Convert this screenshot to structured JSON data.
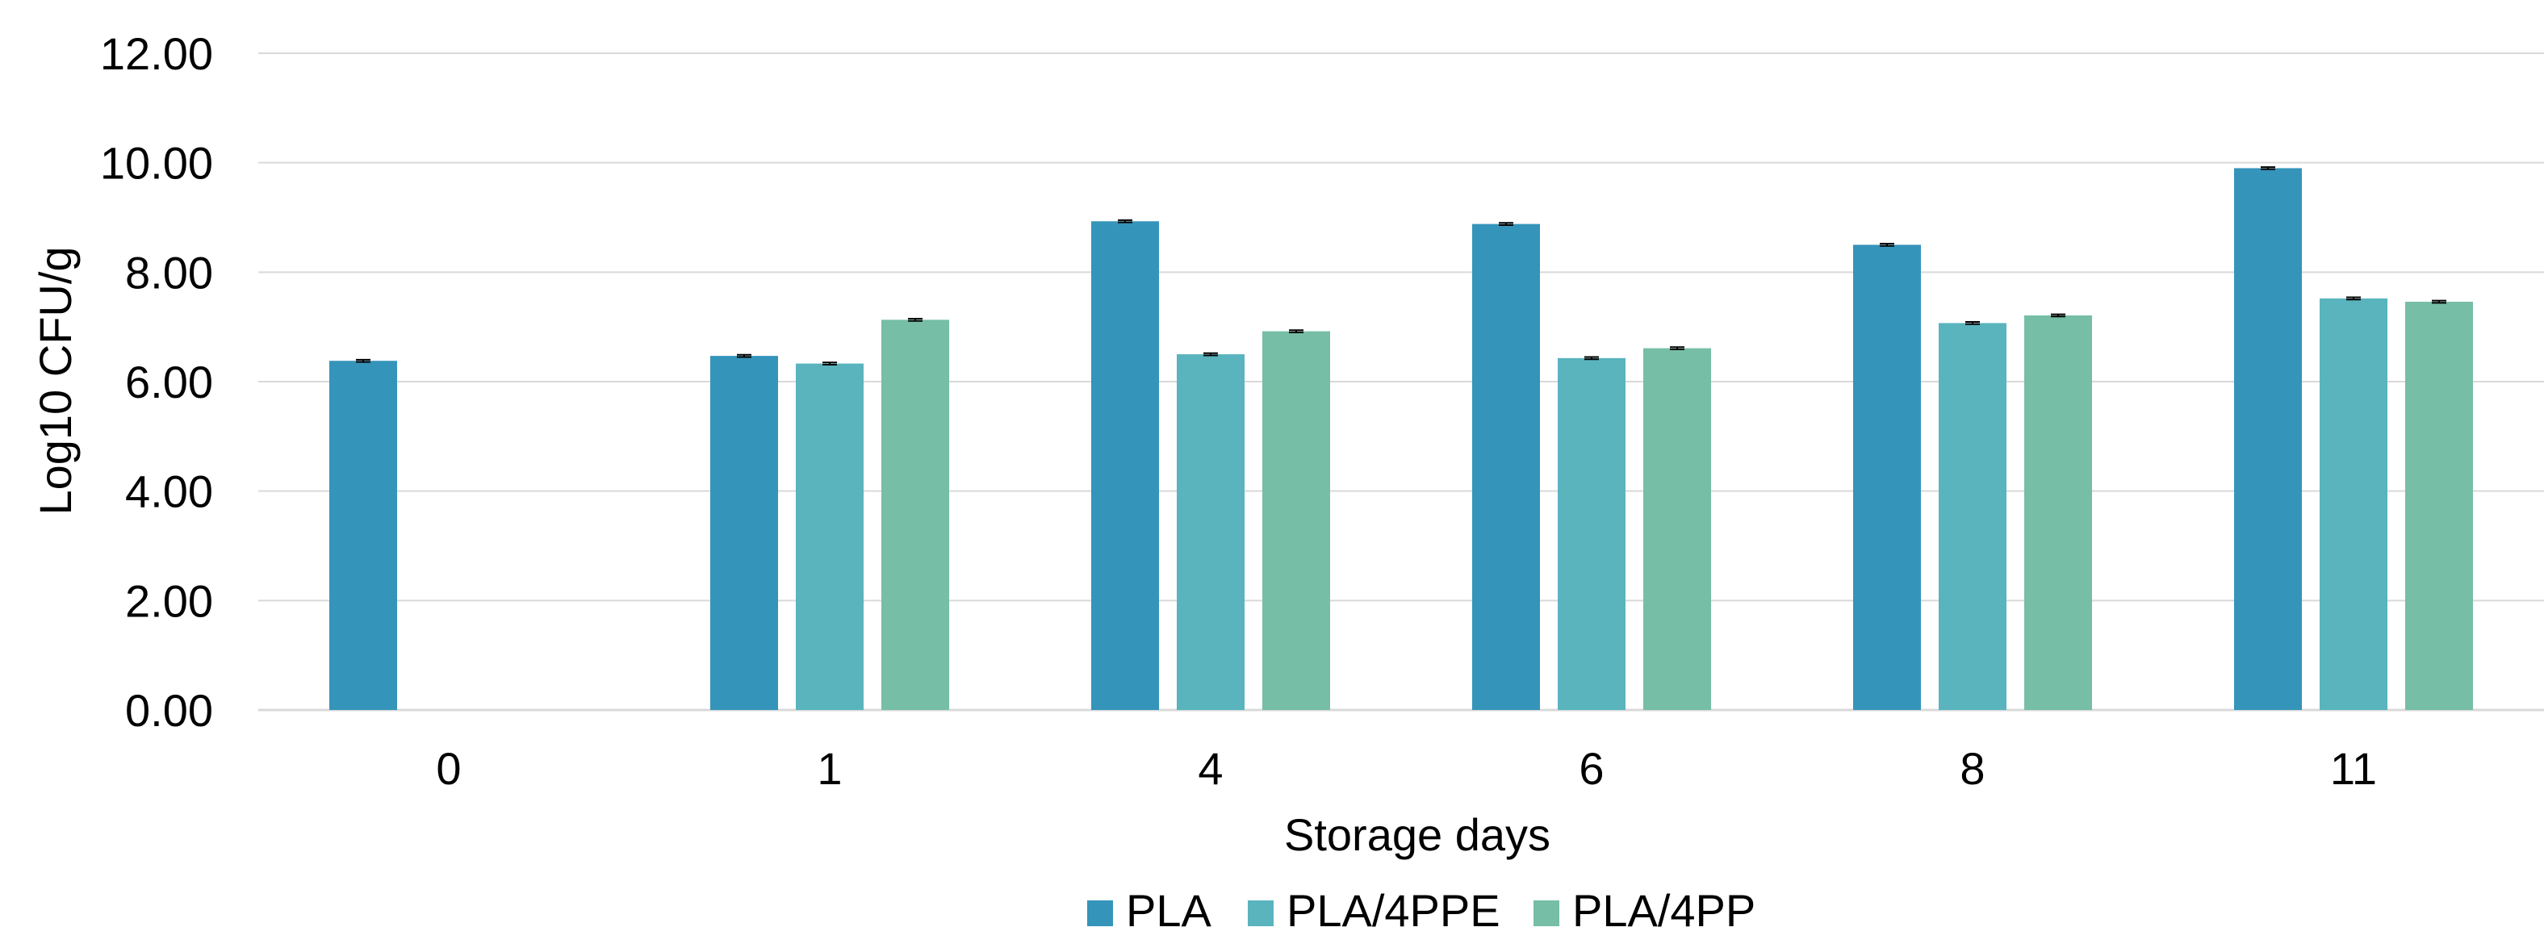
{
  "chart_data": {
    "type": "bar",
    "title": "",
    "xlabel": "Storage days",
    "ylabel": "Log10 CFU/g",
    "categories": [
      "0",
      "1",
      "4",
      "6",
      "8",
      "11"
    ],
    "series": [
      {
        "name": "PLA",
        "color": "#3594BA",
        "values": [
          6.38,
          6.47,
          8.93,
          8.88,
          8.5,
          9.9
        ]
      },
      {
        "name": "PLA/4PPE",
        "color": "#59B4BE",
        "values": [
          null,
          6.33,
          6.5,
          6.43,
          7.07,
          7.52
        ]
      },
      {
        "name": "PLA/4PP",
        "color": "#76BEA5",
        "values": [
          null,
          7.13,
          6.92,
          6.61,
          7.21,
          7.46
        ]
      }
    ],
    "errors": [
      [
        0.02,
        0.02,
        0.02,
        0.02,
        0.02,
        0.02
      ],
      [
        null,
        0.02,
        0.02,
        0.02,
        0.02,
        0.02
      ],
      [
        null,
        0.02,
        0.02,
        0.02,
        0.02,
        0.02
      ]
    ],
    "ylim": [
      0,
      12
    ],
    "yticks": [
      "0.00",
      "2.00",
      "4.00",
      "6.00",
      "8.00",
      "10.00",
      "12.00"
    ],
    "grid": true,
    "legend_position": "bottom"
  }
}
